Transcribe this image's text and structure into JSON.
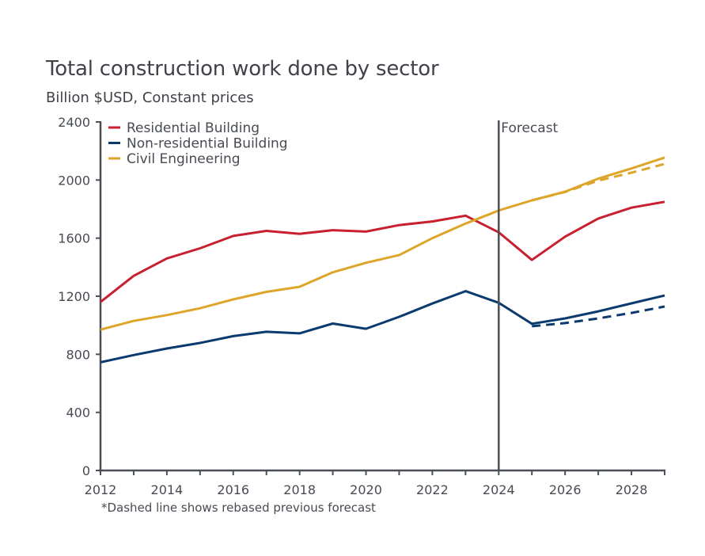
{
  "chart_data": {
    "type": "line",
    "title": "Total construction work done by sector",
    "subtitle": "Billion $USD, Constant prices",
    "xlabel": "",
    "ylabel": "",
    "footnote": "*Dashed line shows rebased previous forecast",
    "xlim": [
      2012,
      2029
    ],
    "ylim": [
      0,
      2400
    ],
    "yticks": [
      0,
      400,
      800,
      1200,
      1600,
      2000,
      2400
    ],
    "xticks_minor": [
      2012,
      2013,
      2014,
      2015,
      2016,
      2017,
      2018,
      2019,
      2020,
      2021,
      2022,
      2023,
      2024,
      2025,
      2026,
      2027,
      2028,
      2029
    ],
    "xtick_labels": [
      "2012",
      "2014",
      "2016",
      "2018",
      "2020",
      "2022",
      "2024",
      "2026",
      "2028"
    ],
    "grid": false,
    "legend_position": "top-left",
    "annotations": [
      {
        "type": "vline",
        "x": 2024,
        "label": "Forecast"
      }
    ],
    "x": [
      2012,
      2013,
      2014,
      2015,
      2016,
      2017,
      2018,
      2019,
      2020,
      2021,
      2022,
      2023,
      2024,
      2025,
      2026,
      2027,
      2028,
      2029
    ],
    "series": [
      {
        "name": "Residential Building",
        "color": "#C8202E",
        "style": "solid",
        "values": [
          1160,
          1340,
          1460,
          1530,
          1615,
          1650,
          1630,
          1655,
          1645,
          1690,
          1715,
          1755,
          1640,
          1450,
          1610,
          1735,
          1810,
          1850
        ]
      },
      {
        "name": "Non-residential Building",
        "color": "#0B3B6E",
        "style": "solid",
        "values": [
          745,
          795,
          840,
          878,
          925,
          955,
          944,
          1012,
          976,
          1058,
          1150,
          1235,
          1155,
          1010,
          1047,
          1096,
          1151,
          1205
        ]
      },
      {
        "name": "Civil Engineering",
        "color": "#DDA62A",
        "style": "solid",
        "values": [
          970,
          1030,
          1070,
          1117,
          1178,
          1230,
          1265,
          1365,
          1430,
          1483,
          1600,
          1700,
          1790,
          1860,
          1920,
          2010,
          2080,
          2155
        ]
      },
      {
        "name": "Non-residential Building (previous forecast)",
        "color": "#0B3B6E",
        "style": "dashed",
        "in_legend": false,
        "x": [
          2025,
          2026,
          2027,
          2028,
          2029
        ],
        "values": [
          993,
          1015,
          1047,
          1085,
          1129
        ]
      },
      {
        "name": "Civil Engineering (previous forecast)",
        "color": "#DDA62A",
        "style": "dashed",
        "in_legend": false,
        "x": [
          2025,
          2026,
          2027,
          2028,
          2029
        ],
        "values": [
          1860,
          1918,
          1996,
          2051,
          2111
        ]
      }
    ]
  },
  "colors": {
    "axis": "#4B4F56",
    "text": "#474b52"
  }
}
